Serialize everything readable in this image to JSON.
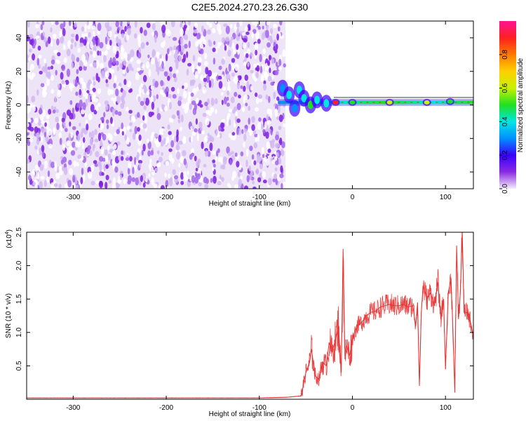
{
  "figure": {
    "title": "C2E5.2024.270.23.26.G30"
  },
  "chart_data": [
    {
      "type": "heatmap",
      "xlabel": "Height of straight line (km)",
      "ylabel": "Frequency (Hz)",
      "xlim": [
        -350,
        130
      ],
      "ylim": [
        -50,
        50
      ],
      "x_ticks": [
        -300,
        -200,
        -100,
        0,
        100
      ],
      "y_ticks": [
        -40,
        -20,
        0,
        20,
        40
      ],
      "noise_region_x": [
        -350,
        -75
      ],
      "signal_line_frequency": 1.5,
      "signal_start_x": -80,
      "signal_features": [
        {
          "x": -75,
          "y": 10,
          "amplitude": 0.3
        },
        {
          "x": -68,
          "y": 6,
          "amplitude": 0.35
        },
        {
          "x": -62,
          "y": -2,
          "amplitude": 0.3
        },
        {
          "x": -57,
          "y": 9,
          "amplitude": 0.35
        },
        {
          "x": -52,
          "y": 4,
          "amplitude": 0.4
        },
        {
          "x": -45,
          "y": 0,
          "amplitude": 0.45
        },
        {
          "x": -38,
          "y": 3,
          "amplitude": 0.4
        },
        {
          "x": -28,
          "y": 1,
          "amplitude": 0.35
        },
        {
          "x": -18,
          "y": 1.5,
          "amplitude": 0.85
        },
        {
          "x": 0,
          "y": 1.5,
          "amplitude": 0.45
        },
        {
          "x": 40,
          "y": 1.5,
          "amplitude": 0.55
        },
        {
          "x": 80,
          "y": 1.5,
          "amplitude": 0.6
        },
        {
          "x": 105,
          "y": 2,
          "amplitude": 0.5
        }
      ],
      "colorbar": {
        "label": "Normalized spectral amplitude",
        "range": [
          0,
          1
        ],
        "ticks": [
          0.0,
          0.2,
          0.4,
          0.6,
          0.8
        ],
        "colors": [
          "#f4ecfb",
          "#8a2be2",
          "#3a00ff",
          "#0090ff",
          "#00e5e5",
          "#20e020",
          "#c8f000",
          "#ffd000",
          "#ff7a00",
          "#ff2020",
          "#ff1493"
        ]
      }
    },
    {
      "type": "line",
      "xlabel": "Height of straight line (km)",
      "ylabel": "SNR (10 * v/v)",
      "y_scale_label": "(x10",
      "y_scale_exponent": "4",
      "y_scale_close": ")",
      "xlim": [
        -350,
        130
      ],
      "ylim": [
        0,
        2.5
      ],
      "x_ticks": [
        -300,
        -200,
        -100,
        0,
        100
      ],
      "y_ticks": [
        0.5,
        1.0,
        1.5,
        2.0,
        2.5
      ],
      "line_color": "#e83030",
      "series": [
        {
          "x": [
            -350,
            -300,
            -250,
            -200,
            -150,
            -100,
            -70,
            -55,
            -50,
            -46,
            -44,
            -40,
            -36,
            -32,
            -28,
            -25,
            -22,
            -18,
            -15,
            -12,
            -10,
            -8,
            -6,
            -3,
            0,
            5,
            10,
            15,
            20,
            25,
            30,
            35,
            40,
            45,
            50,
            55,
            60,
            65,
            68,
            70,
            72,
            74,
            76,
            80,
            84,
            88,
            92,
            95,
            98,
            100,
            103,
            106,
            108,
            110,
            112,
            114,
            116,
            118,
            120,
            124,
            127,
            130
          ],
          "y": [
            0.02,
            0.02,
            0.02,
            0.02,
            0.02,
            0.02,
            0.03,
            0.05,
            0.4,
            0.55,
            0.75,
            0.35,
            0.3,
            0.55,
            0.5,
            0.85,
            0.7,
            0.9,
            1.1,
            0.4,
            2.25,
            0.6,
            0.8,
            0.65,
            0.9,
            1.1,
            1.15,
            1.25,
            1.3,
            1.32,
            1.38,
            1.4,
            1.42,
            1.4,
            1.4,
            1.42,
            1.38,
            1.4,
            1.1,
            1.45,
            0.2,
            1.3,
            1.7,
            1.5,
            1.6,
            1.4,
            1.75,
            1.2,
            1.5,
            0.45,
            1.6,
            1.8,
            1.05,
            0.1,
            2.3,
            1.2,
            1.6,
            2.5,
            1.3,
            1.3,
            1.15,
            0.95
          ]
        }
      ]
    }
  ]
}
